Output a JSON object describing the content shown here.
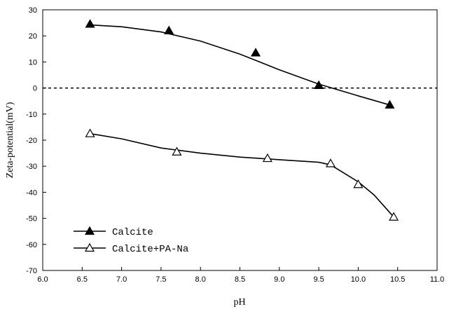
{
  "chart_data": {
    "type": "line",
    "title": "",
    "xlabel": "pH",
    "ylabel": "Zeta-potential(mV)",
    "xlim": [
      6.0,
      11.0
    ],
    "ylim": [
      -70,
      30
    ],
    "xticks": [
      "6.0",
      "6.5",
      "7.0",
      "7.5",
      "8.0",
      "8.5",
      "9.0",
      "9.5",
      "10.0",
      "10.5",
      "11.0"
    ],
    "yticks": [
      "30",
      "20",
      "10",
      "0",
      "-10",
      "-20",
      "-30",
      "-40",
      "-50",
      "-60",
      "-70"
    ],
    "grid": false,
    "reference_line": {
      "y": 0,
      "style": "dashed"
    },
    "legend_position": "bottom-left",
    "series": [
      {
        "name": "Calcite",
        "marker": "filled-triangle",
        "x": [
          6.6,
          7.6,
          8.7,
          9.5,
          10.4
        ],
        "y": [
          24.5,
          22,
          13.5,
          1,
          -6.5
        ],
        "curve_x": [
          6.6,
          7.0,
          7.5,
          8.0,
          8.5,
          9.0,
          9.5,
          10.0,
          10.4
        ],
        "curve_y": [
          24.2,
          23.5,
          21.5,
          18.0,
          13.0,
          7.0,
          1.5,
          -3.0,
          -6.5
        ]
      },
      {
        "name": "Calcite+PA-Na",
        "marker": "open-triangle",
        "x": [
          6.6,
          7.7,
          8.85,
          9.65,
          10.0,
          10.45
        ],
        "y": [
          -17.5,
          -24.5,
          -27,
          -29,
          -37,
          -49.5
        ],
        "curve_x": [
          6.6,
          7.0,
          7.5,
          8.0,
          8.5,
          9.0,
          9.5,
          9.65,
          10.0,
          10.2,
          10.45
        ],
        "curve_y": [
          -17.5,
          -19.5,
          -23.0,
          -25.0,
          -26.5,
          -27.5,
          -28.5,
          -29.5,
          -36.0,
          -41.0,
          -49.5
        ]
      }
    ]
  }
}
